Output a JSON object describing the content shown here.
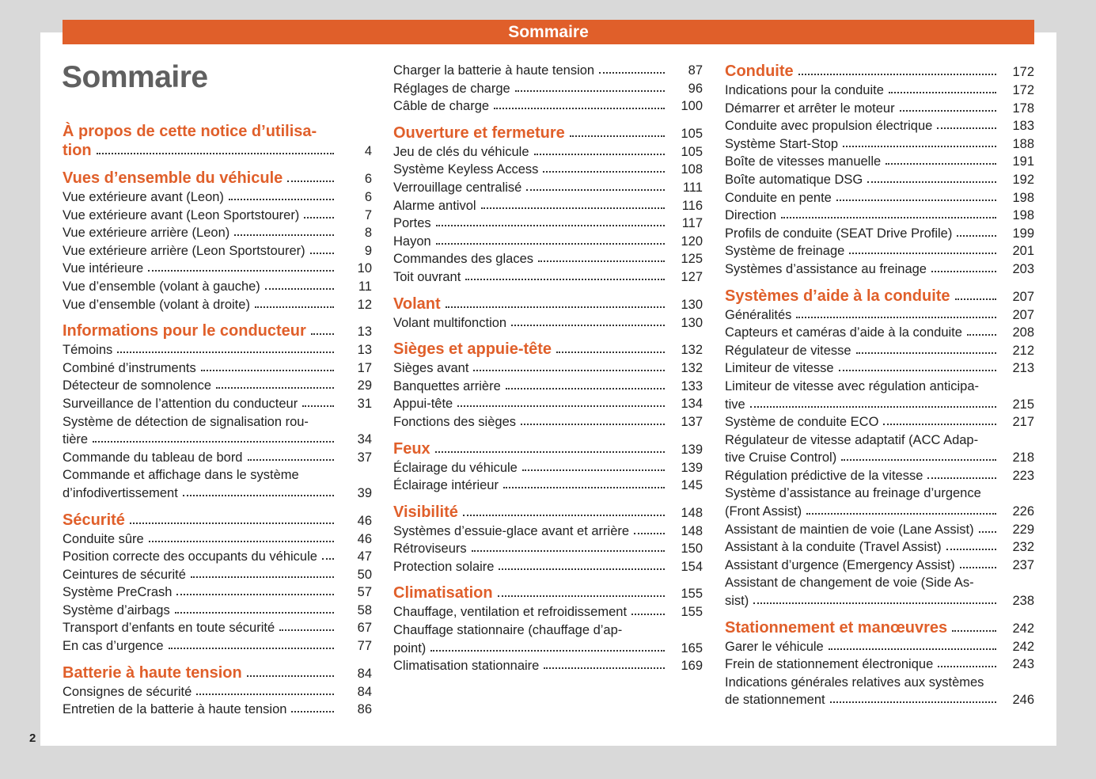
{
  "header": {
    "banner": "Sommaire",
    "title": "Sommaire",
    "page_number": "2"
  },
  "colors": {
    "accent": "#e05f2a",
    "background": "#d9d9d9",
    "title": "#606060"
  },
  "columns": [
    [
      {
        "type": "heading",
        "text": "À propos de cette notice d’utilisa-\ntion",
        "page": "4"
      },
      {
        "type": "heading",
        "text": "Vues d’ensemble du véhicule",
        "page": "6"
      },
      {
        "type": "item",
        "text": "Vue extérieure avant (Leon)",
        "page": "6"
      },
      {
        "type": "item",
        "text": "Vue extérieure avant (Leon Sportstourer)",
        "page": "7"
      },
      {
        "type": "item",
        "text": "Vue extérieure arrière (Leon)",
        "page": "8"
      },
      {
        "type": "item",
        "text": "Vue extérieure arrière (Leon Sportstourer)",
        "page": "9"
      },
      {
        "type": "item",
        "text": "Vue intérieure",
        "page": "10"
      },
      {
        "type": "item",
        "text": "Vue d’ensemble (volant à gauche)",
        "page": "11"
      },
      {
        "type": "item",
        "text": "Vue d’ensemble (volant à droite)",
        "page": "12"
      },
      {
        "type": "heading",
        "text": "Informations pour le conducteur",
        "page": "13"
      },
      {
        "type": "item",
        "text": "Témoins",
        "page": "13"
      },
      {
        "type": "item",
        "text": "Combiné d’instruments",
        "page": "17"
      },
      {
        "type": "item",
        "text": "Détecteur de somnolence",
        "page": "29"
      },
      {
        "type": "item",
        "text": "Surveillance de l’attention du conducteur",
        "page": "31"
      },
      {
        "type": "item",
        "text": "Système de détection de signalisation rou-\ntière",
        "page": "34"
      },
      {
        "type": "item",
        "text": "Commande du tableau de bord",
        "page": "37"
      },
      {
        "type": "item",
        "text": "Commande et affichage dans le système\nd’infodivertissement",
        "page": "39"
      },
      {
        "type": "heading",
        "text": "Sécurité",
        "page": "46"
      },
      {
        "type": "item",
        "text": "Conduite sûre",
        "page": "46"
      },
      {
        "type": "item",
        "text": "Position correcte des occupants du véhicule",
        "page": "47"
      },
      {
        "type": "item",
        "text": "Ceintures de sécurité",
        "page": "50"
      },
      {
        "type": "item",
        "text": "Système PreCrash",
        "page": "57"
      },
      {
        "type": "item",
        "text": "Système d’airbags",
        "page": "58"
      },
      {
        "type": "item",
        "text": "Transport d’enfants en toute sécurité",
        "page": "67"
      },
      {
        "type": "item",
        "text": "En cas d’urgence",
        "page": "77"
      },
      {
        "type": "heading",
        "text": "Batterie à haute tension",
        "page": "84"
      },
      {
        "type": "item",
        "text": "Consignes de sécurité",
        "page": "84"
      },
      {
        "type": "item",
        "text": "Entretien de la batterie à haute tension",
        "page": "86"
      }
    ],
    [
      {
        "type": "item",
        "text": "Charger la batterie à haute tension",
        "page": "87"
      },
      {
        "type": "item",
        "text": "Réglages de charge",
        "page": "96"
      },
      {
        "type": "item",
        "text": "Câble de charge",
        "page": "100"
      },
      {
        "type": "heading",
        "text": "Ouverture et fermeture",
        "page": "105"
      },
      {
        "type": "item",
        "text": "Jeu de clés du véhicule",
        "page": "105"
      },
      {
        "type": "item",
        "text": "Système Keyless Access",
        "page": "108"
      },
      {
        "type": "item",
        "text": "Verrouillage centralisé",
        "page": "111"
      },
      {
        "type": "item",
        "text": "Alarme antivol",
        "page": "116"
      },
      {
        "type": "item",
        "text": "Portes",
        "page": "117"
      },
      {
        "type": "item",
        "text": "Hayon",
        "page": "120"
      },
      {
        "type": "item",
        "text": "Commandes des glaces",
        "page": "125"
      },
      {
        "type": "item",
        "text": "Toit ouvrant",
        "page": "127"
      },
      {
        "type": "heading",
        "text": "Volant",
        "page": "130"
      },
      {
        "type": "item",
        "text": "Volant multifonction",
        "page": "130"
      },
      {
        "type": "heading",
        "text": "Sièges et appuie-tête",
        "page": "132"
      },
      {
        "type": "item",
        "text": "Sièges avant",
        "page": "132"
      },
      {
        "type": "item",
        "text": "Banquettes arrière",
        "page": "133"
      },
      {
        "type": "item",
        "text": "Appui-tête",
        "page": "134"
      },
      {
        "type": "item",
        "text": "Fonctions des sièges",
        "page": "137"
      },
      {
        "type": "heading",
        "text": "Feux",
        "page": "139"
      },
      {
        "type": "item",
        "text": "Éclairage du véhicule",
        "page": "139"
      },
      {
        "type": "item",
        "text": "Éclairage intérieur",
        "page": "145"
      },
      {
        "type": "heading",
        "text": "Visibilité",
        "page": "148"
      },
      {
        "type": "item",
        "text": "Systèmes d’essuie-glace avant et arrière",
        "page": "148"
      },
      {
        "type": "item",
        "text": "Rétroviseurs",
        "page": "150"
      },
      {
        "type": "item",
        "text": "Protection solaire",
        "page": "154"
      },
      {
        "type": "heading",
        "text": "Climatisation",
        "page": "155"
      },
      {
        "type": "item",
        "text": "Chauffage, ventilation et refroidissement",
        "page": "155"
      },
      {
        "type": "item",
        "text": "Chauffage stationnaire (chauffage d’ap-\npoint)",
        "page": "165"
      },
      {
        "type": "item",
        "text": "Climatisation stationnaire",
        "page": "169"
      }
    ],
    [
      {
        "type": "heading",
        "text": "Conduite",
        "page": "172"
      },
      {
        "type": "item",
        "text": "Indications pour la conduite",
        "page": "172"
      },
      {
        "type": "item",
        "text": "Démarrer et arrêter le moteur",
        "page": "178"
      },
      {
        "type": "item",
        "text": "Conduite avec propulsion électrique",
        "page": "183"
      },
      {
        "type": "item",
        "text": "Système Start-Stop",
        "page": "188"
      },
      {
        "type": "item",
        "text": "Boîte de vitesses manuelle",
        "page": "191"
      },
      {
        "type": "item",
        "text": "Boîte automatique DSG",
        "page": "192"
      },
      {
        "type": "item",
        "text": "Conduite en pente",
        "page": "198"
      },
      {
        "type": "item",
        "text": "Direction",
        "page": "198"
      },
      {
        "type": "item",
        "text": "Profils de conduite (SEAT Drive Profile)",
        "page": "199"
      },
      {
        "type": "item",
        "text": "Système de freinage",
        "page": "201"
      },
      {
        "type": "item",
        "text": "Systèmes d’assistance au freinage",
        "page": "203"
      },
      {
        "type": "heading",
        "text": "Systèmes d’aide à la conduite",
        "page": "207"
      },
      {
        "type": "item",
        "text": "Généralités",
        "page": "207"
      },
      {
        "type": "item",
        "text": "Capteurs et caméras d’aide à la conduite",
        "page": "208"
      },
      {
        "type": "item",
        "text": "Régulateur de vitesse",
        "page": "212"
      },
      {
        "type": "item",
        "text": "Limiteur de vitesse",
        "page": "213"
      },
      {
        "type": "item",
        "text": "Limiteur de vitesse avec régulation anticipa-\ntive",
        "page": "215"
      },
      {
        "type": "item",
        "text": "Système de conduite ECO",
        "page": "217"
      },
      {
        "type": "item",
        "text": "Régulateur de vitesse adaptatif (ACC Adap-\ntive Cruise Control)",
        "page": "218"
      },
      {
        "type": "item",
        "text": "Régulation prédictive de la vitesse",
        "page": "223"
      },
      {
        "type": "item",
        "text": "Système d’assistance au freinage d’urgence\n(Front Assist)",
        "page": "226"
      },
      {
        "type": "item",
        "text": "Assistant de maintien de voie (Lane Assist)",
        "page": "229"
      },
      {
        "type": "item",
        "text": "Assistant à la conduite (Travel Assist)",
        "page": "232"
      },
      {
        "type": "item",
        "text": "Assistant d’urgence (Emergency Assist)",
        "page": "237"
      },
      {
        "type": "item",
        "text": "Assistant de changement de voie (Side As-\nsist)",
        "page": "238"
      },
      {
        "type": "heading",
        "text": "Stationnement et manœuvres",
        "page": "242"
      },
      {
        "type": "item",
        "text": "Garer le véhicule",
        "page": "242"
      },
      {
        "type": "item",
        "text": "Frein de stationnement électronique",
        "page": "243"
      },
      {
        "type": "item",
        "text": "Indications générales relatives aux systèmes\nde stationnement",
        "page": "246"
      }
    ]
  ]
}
